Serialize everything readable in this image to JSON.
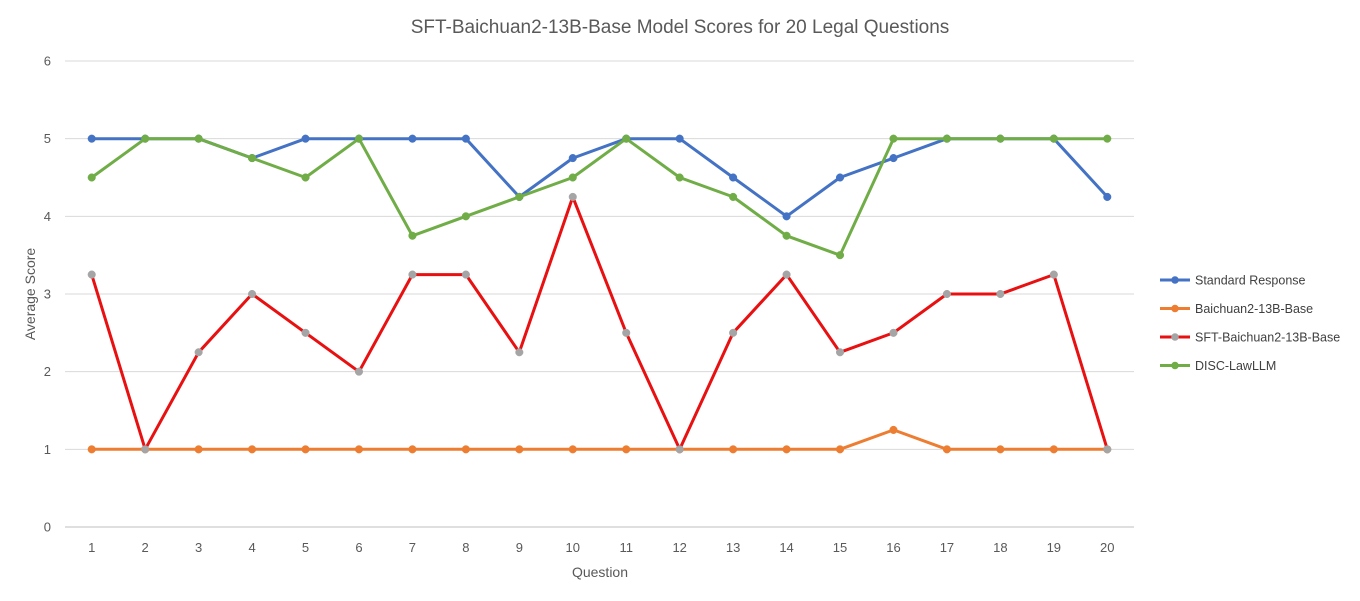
{
  "chart_data": {
    "type": "line",
    "title": "SFT-Baichuan2-13B-Base Model  Scores for 20 Legal Questions",
    "xlabel": "Question",
    "ylabel": "Average Score",
    "ylim": [
      0,
      6
    ],
    "yticks": [
      "0",
      "1",
      "2",
      "3",
      "4",
      "5",
      "6"
    ],
    "categories": [
      "1",
      "2",
      "3",
      "4",
      "5",
      "6",
      "7",
      "8",
      "9",
      "10",
      "11",
      "12",
      "13",
      "14",
      "15",
      "16",
      "17",
      "18",
      "19",
      "20"
    ],
    "grid": true,
    "legend_position": "right",
    "series": [
      {
        "name": "Standard Response",
        "color": "#4472C4",
        "marker_color": "#4472C4",
        "values": [
          5,
          5,
          5,
          4.75,
          5,
          5,
          5,
          5,
          4.25,
          4.75,
          5,
          5,
          4.5,
          4,
          4.5,
          4.75,
          5,
          5,
          5,
          4.25
        ]
      },
      {
        "name": "Baichuan2-13B-Base",
        "color": "#ED7D31",
        "marker_color": "#ED7D31",
        "values": [
          1,
          1,
          1,
          1,
          1,
          1,
          1,
          1,
          1,
          1,
          1,
          1,
          1,
          1,
          1,
          1.25,
          1,
          1,
          1,
          1
        ]
      },
      {
        "name": "SFT-Baichuan2-13B-Base",
        "color": "#E81010",
        "marker_color": "#A5A5A5",
        "values": [
          3.25,
          1,
          2.25,
          3,
          2.5,
          2,
          3.25,
          3.25,
          2.25,
          4.25,
          2.5,
          1,
          2.5,
          3.25,
          2.25,
          2.5,
          3,
          3,
          3.25,
          1
        ]
      },
      {
        "name": "DISC-LawLLM",
        "color": "#70AD47",
        "marker_color": "#70AD47",
        "values": [
          4.5,
          5,
          5,
          4.75,
          4.5,
          5,
          3.75,
          4,
          4.25,
          4.5,
          5,
          4.5,
          4.25,
          3.75,
          3.5,
          5,
          5,
          5,
          5,
          5
        ]
      }
    ]
  }
}
